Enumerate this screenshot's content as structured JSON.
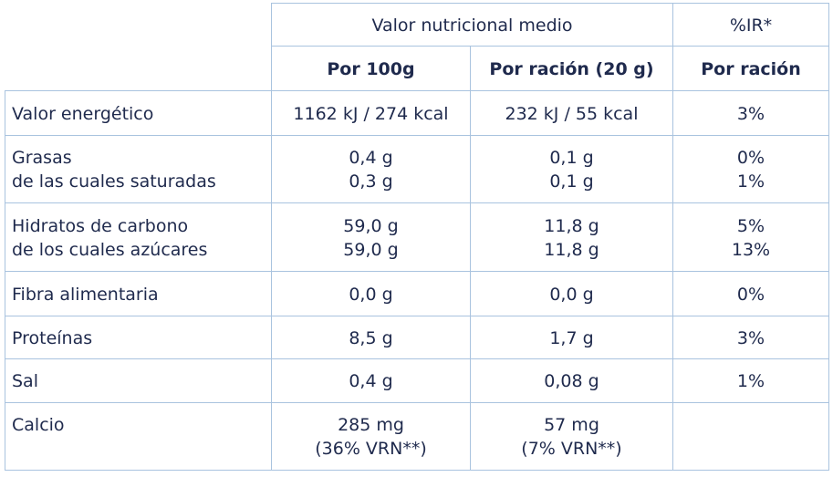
{
  "table": {
    "header": {
      "group": "Valor nutricional medio",
      "ir": "%IR*",
      "columns": [
        "Por 100g",
        "Por ración (20 g)",
        "Por ración"
      ]
    },
    "rows": [
      [
        [
          "Valor energético"
        ],
        [
          "1162 kJ / 274 kcal"
        ],
        [
          "232 kJ / 55 kcal"
        ],
        [
          "3%"
        ]
      ],
      [
        [
          "Grasas",
          "de las cuales saturadas"
        ],
        [
          "0,4 g",
          "0,3 g"
        ],
        [
          "0,1 g",
          "0,1 g"
        ],
        [
          "0%",
          "1%"
        ]
      ],
      [
        [
          "Hidratos de carbono",
          "de los cuales azúcares"
        ],
        [
          "59,0 g",
          "59,0 g"
        ],
        [
          "11,8 g",
          "11,8 g"
        ],
        [
          "5%",
          "13%"
        ]
      ],
      [
        [
          "Fibra alimentaria"
        ],
        [
          "0,0 g"
        ],
        [
          "0,0 g"
        ],
        [
          "0%"
        ]
      ],
      [
        [
          "Proteínas"
        ],
        [
          "8,5 g"
        ],
        [
          "1,7 g"
        ],
        [
          "3%"
        ]
      ],
      [
        [
          "Sal"
        ],
        [
          "0,4 g"
        ],
        [
          "0,08 g"
        ],
        [
          "1%"
        ]
      ],
      [
        [
          "Calcio"
        ],
        [
          "285 mg",
          "(36% VRN**)"
        ],
        [
          "57 mg",
          "(7% VRN**)"
        ],
        []
      ]
    ]
  }
}
